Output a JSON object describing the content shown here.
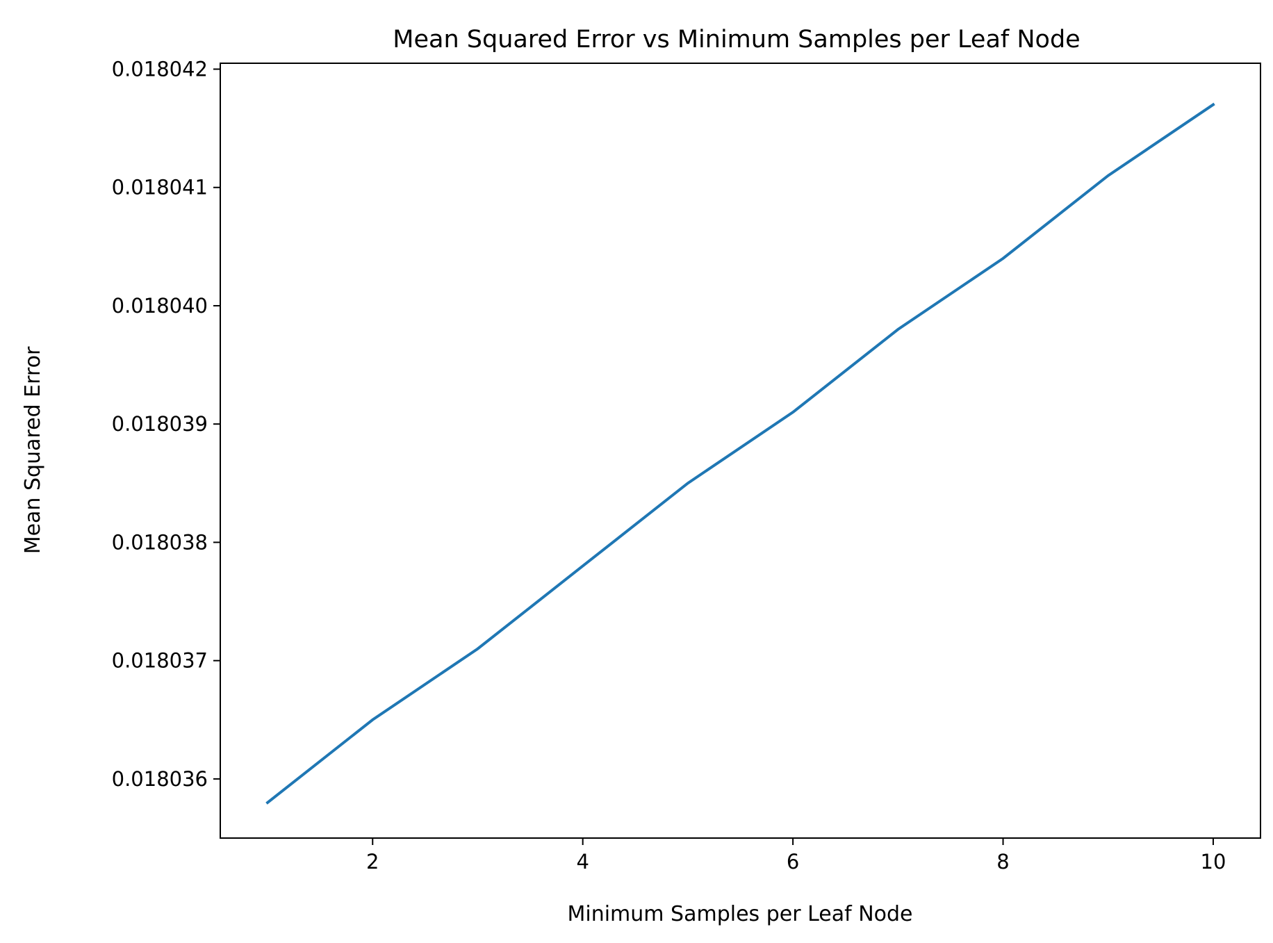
{
  "chart_data": {
    "type": "line",
    "title": "Mean Squared Error vs Minimum Samples per Leaf Node",
    "xlabel": "Minimum Samples per Leaf Node",
    "ylabel": "Mean Squared Error",
    "xlim": [
      0.55,
      10.45
    ],
    "ylim": [
      0.0180355,
      0.01804205
    ],
    "xticks": [
      2,
      4,
      6,
      8,
      10
    ],
    "xtick_labels": [
      "2",
      "4",
      "6",
      "8",
      "10"
    ],
    "yticks": [
      0.018036,
      0.018037,
      0.018038,
      0.018039,
      0.01804,
      0.018041,
      0.018042
    ],
    "ytick_labels": [
      "0.018036",
      "0.018037",
      "0.018038",
      "0.018039",
      "0.018040",
      "0.018041",
      "0.018042"
    ],
    "grid": false,
    "series": [
      {
        "color": "#1f77b4",
        "x": [
          1,
          2,
          3,
          4,
          5,
          6,
          7,
          8,
          9,
          10
        ],
        "y": [
          0.0180358,
          0.0180365,
          0.0180371,
          0.0180378,
          0.0180385,
          0.0180391,
          0.0180398,
          0.0180404,
          0.0180411,
          0.0180417
        ]
      }
    ]
  }
}
